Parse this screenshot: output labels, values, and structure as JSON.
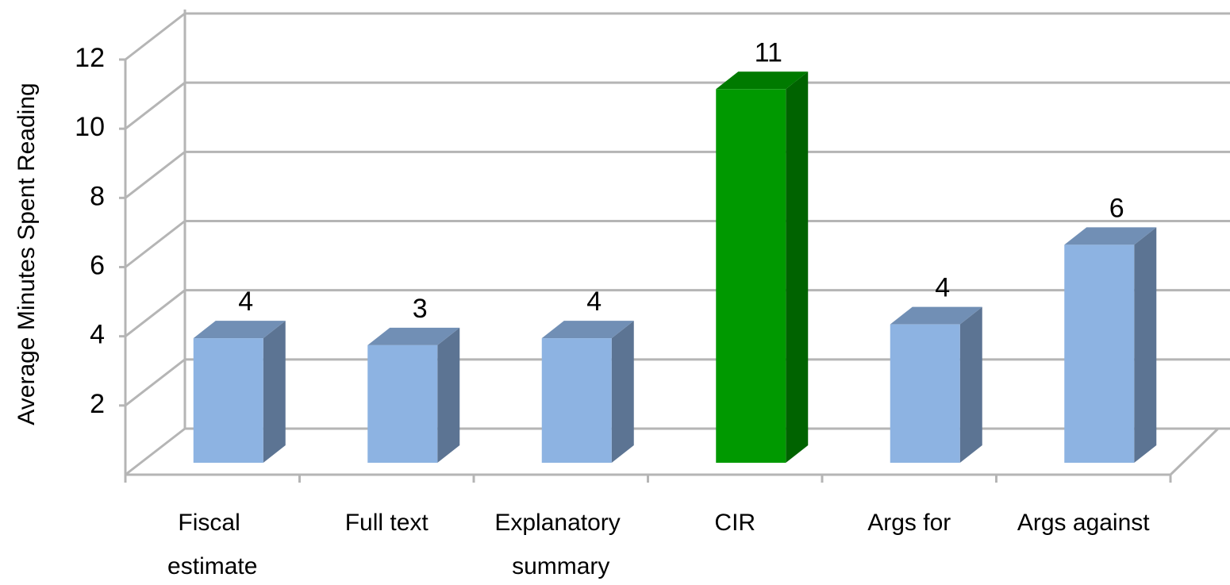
{
  "chart_data": {
    "type": "bar3d",
    "y_axis_label": "Average Minutes Spent Reading",
    "categories": [
      "Fiscal estimate",
      "Full text",
      "Explanatory summary",
      "CIR",
      "Args for",
      "Args against"
    ],
    "values": [
      3.6,
      3.4,
      3.6,
      10.8,
      4.0,
      6.3
    ],
    "value_labels": [
      "4",
      "3",
      "4",
      "11",
      "4",
      "6"
    ],
    "colors": [
      "#8db3e2",
      "#8db3e2",
      "#8db3e2",
      "#009900",
      "#8db3e2",
      "#8db3e2"
    ],
    "ylim": [
      0,
      12
    ],
    "yticks": [
      2,
      4,
      6,
      8,
      10,
      12
    ],
    "grid": true
  }
}
